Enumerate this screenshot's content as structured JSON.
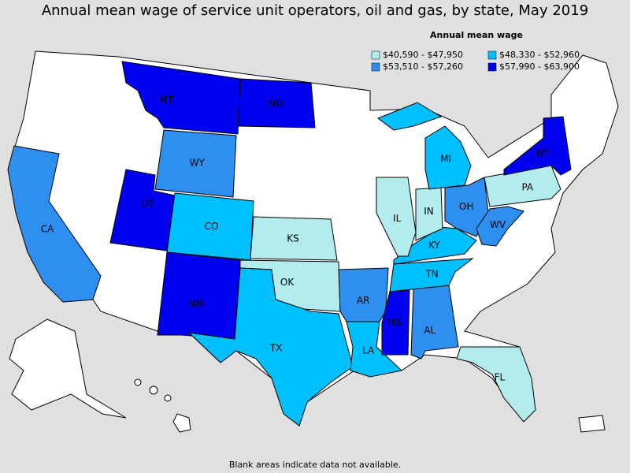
{
  "title": "Annual mean wage of service unit operators, oil and gas, by state, May 2019",
  "legend": {
    "title": "Annual mean wage",
    "bins": [
      {
        "label": "$40,590 - $47,950",
        "color": "#b3ecec"
      },
      {
        "label": "$48,330 - $52,960",
        "color": "#00bfff"
      },
      {
        "label": "$53,510 - $57,260",
        "color": "#2f8ff0"
      },
      {
        "label": "$57,990 - $63,900",
        "color": "#0000f0"
      }
    ]
  },
  "states": [
    {
      "label": "MT",
      "bin": 3
    },
    {
      "label": "ND",
      "bin": 3
    },
    {
      "label": "WY",
      "bin": 2
    },
    {
      "label": "UT",
      "bin": 3
    },
    {
      "label": "CO",
      "bin": 1
    },
    {
      "label": "CA",
      "bin": 2
    },
    {
      "label": "NM",
      "bin": 3
    },
    {
      "label": "KS",
      "bin": 0
    },
    {
      "label": "OK",
      "bin": 0
    },
    {
      "label": "TX",
      "bin": 1
    },
    {
      "label": "AR",
      "bin": 2
    },
    {
      "label": "LA",
      "bin": 1
    },
    {
      "label": "MS",
      "bin": 3
    },
    {
      "label": "AL",
      "bin": 2
    },
    {
      "label": "TN",
      "bin": 1
    },
    {
      "label": "KY",
      "bin": 1
    },
    {
      "label": "IL",
      "bin": 0
    },
    {
      "label": "IN",
      "bin": 0
    },
    {
      "label": "MI",
      "bin": 1
    },
    {
      "label": "OH",
      "bin": 2
    },
    {
      "label": "WV",
      "bin": 2
    },
    {
      "label": "PA",
      "bin": 0
    },
    {
      "label": "NY",
      "bin": 3
    },
    {
      "label": "FL",
      "bin": 0
    }
  ],
  "note": "Blank areas indicate data not available."
}
